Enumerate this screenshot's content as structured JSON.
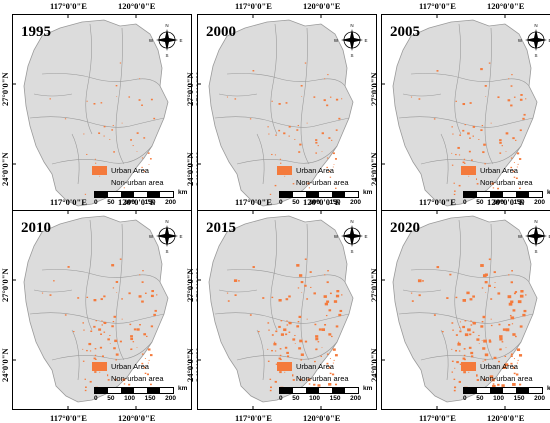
{
  "lon_labels": [
    "117°0'0\"E",
    "120°0'0\"E"
  ],
  "lat_labels": [
    "27°0'0\"N",
    "24°0'0\"N"
  ],
  "legend": {
    "urban_label": "Urban Area",
    "nonurban_label": "Non-urban area"
  },
  "scale": {
    "ticks": [
      "0",
      "50",
      "100",
      "150",
      "200"
    ],
    "unit": "km"
  },
  "colors": {
    "urban": "#f47a3c",
    "nonurban": "#dcdcdc",
    "boundary": "#9a9a9a"
  },
  "north_arrow": {
    "letters": [
      "N",
      "S",
      "W",
      "E"
    ]
  },
  "panels": [
    {
      "year": "1995"
    },
    {
      "year": "2000"
    },
    {
      "year": "2005"
    },
    {
      "year": "2010"
    },
    {
      "year": "2015"
    },
    {
      "year": "2020"
    }
  ]
}
